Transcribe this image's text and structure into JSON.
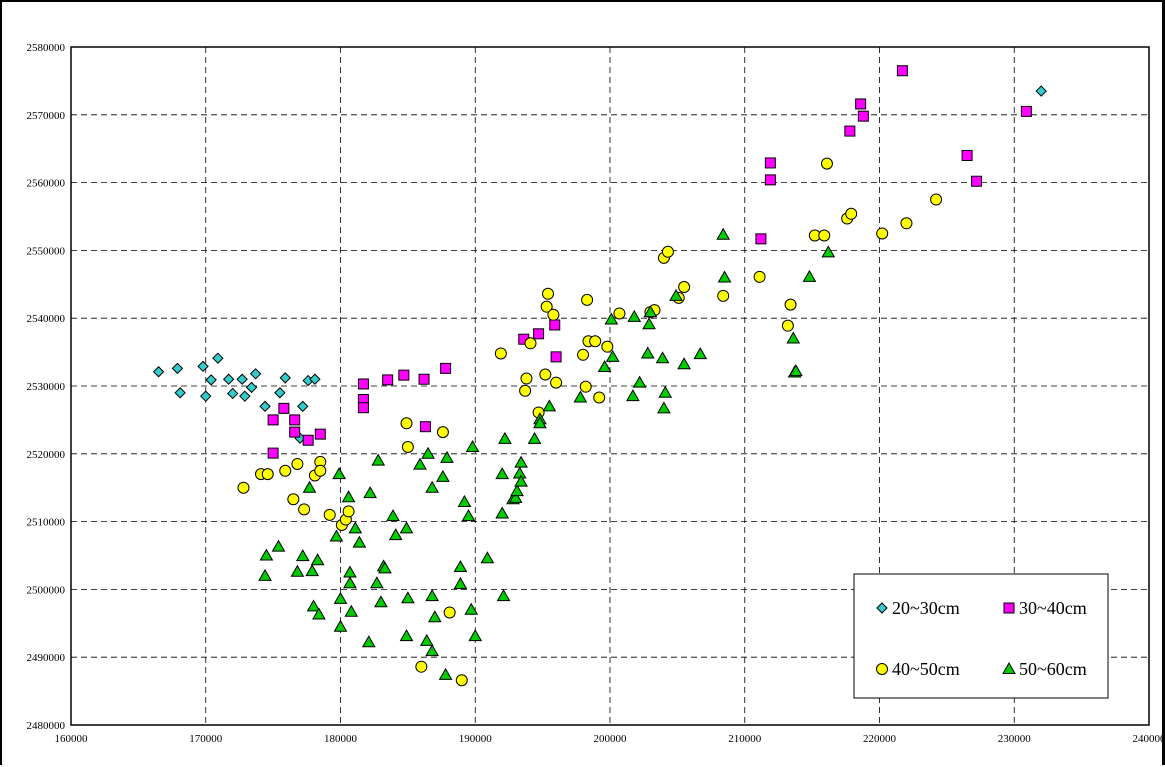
{
  "chart_data": {
    "type": "scatter",
    "title": "",
    "xlabel": "",
    "ylabel": "",
    "xlim": [
      160000,
      240000
    ],
    "ylim": [
      2480000,
      2580000
    ],
    "grid": true,
    "legend_position": "bottom-right",
    "x_ticks": [
      "160000",
      "170000",
      "180000",
      "190000",
      "200000",
      "210000",
      "220000",
      "230000",
      "240000"
    ],
    "y_ticks": [
      "2480000",
      "2490000",
      "2500000",
      "2510000",
      "2520000",
      "2530000",
      "2540000",
      "2550000",
      "2560000",
      "2570000",
      "2580000"
    ],
    "series": [
      {
        "name": "20~30cm",
        "marker": "diamond",
        "color": "#33CCCC",
        "points": [
          [
            166500,
            2532100
          ],
          [
            167900,
            2532600
          ],
          [
            168100,
            2529000
          ],
          [
            169800,
            2532900
          ],
          [
            170000,
            2528500
          ],
          [
            170400,
            2530900
          ],
          [
            170900,
            2534100
          ],
          [
            171700,
            2531000
          ],
          [
            172000,
            2528900
          ],
          [
            172700,
            2531000
          ],
          [
            172900,
            2528500
          ],
          [
            173400,
            2529800
          ],
          [
            173700,
            2531800
          ],
          [
            174400,
            2527000
          ],
          [
            175500,
            2529000
          ],
          [
            175900,
            2531200
          ],
          [
            177200,
            2527000
          ],
          [
            177600,
            2530800
          ],
          [
            178100,
            2531000
          ],
          [
            177000,
            2522300
          ],
          [
            232000,
            2573500
          ]
        ]
      },
      {
        "name": "30~40cm",
        "marker": "square",
        "color": "#FF00FF",
        "points": [
          [
            175000,
            2525000
          ],
          [
            175000,
            2520100
          ],
          [
            175800,
            2526700
          ],
          [
            176600,
            2525000
          ],
          [
            176600,
            2523200
          ],
          [
            177600,
            2522000
          ],
          [
            178500,
            2522900
          ],
          [
            181700,
            2530300
          ],
          [
            181700,
            2528000
          ],
          [
            181700,
            2526800
          ],
          [
            183500,
            2530900
          ],
          [
            184700,
            2531600
          ],
          [
            186200,
            2531000
          ],
          [
            186300,
            2524000
          ],
          [
            187800,
            2532600
          ],
          [
            193600,
            2536900
          ],
          [
            194700,
            2537700
          ],
          [
            195900,
            2539000
          ],
          [
            196000,
            2534300
          ],
          [
            211200,
            2551700
          ],
          [
            211900,
            2562900
          ],
          [
            211900,
            2560400
          ],
          [
            217800,
            2567600
          ],
          [
            218600,
            2571600
          ],
          [
            218800,
            2569800
          ],
          [
            221700,
            2576500
          ],
          [
            226500,
            2564000
          ],
          [
            227200,
            2560200
          ],
          [
            230900,
            2570500
          ]
        ]
      },
      {
        "name": "40~50cm",
        "marker": "circle",
        "color": "#FFFF00",
        "points": [
          [
            172800,
            2515000
          ],
          [
            174100,
            2517000
          ],
          [
            174600,
            2517000
          ],
          [
            175900,
            2517500
          ],
          [
            176500,
            2513300
          ],
          [
            176800,
            2518500
          ],
          [
            177300,
            2511800
          ],
          [
            178100,
            2516800
          ],
          [
            178500,
            2518800
          ],
          [
            178500,
            2517500
          ],
          [
            179200,
            2511000
          ],
          [
            180100,
            2509500
          ],
          [
            180400,
            2510300
          ],
          [
            180600,
            2511500
          ],
          [
            184900,
            2524500
          ],
          [
            185000,
            2521000
          ],
          [
            187600,
            2523200
          ],
          [
            186000,
            2488600
          ],
          [
            188100,
            2496600
          ],
          [
            189000,
            2486600
          ],
          [
            191900,
            2534800
          ],
          [
            193700,
            2529300
          ],
          [
            193800,
            2531100
          ],
          [
            194100,
            2536300
          ],
          [
            194700,
            2526100
          ],
          [
            195200,
            2531700
          ],
          [
            195300,
            2541700
          ],
          [
            195400,
            2543600
          ],
          [
            195800,
            2540500
          ],
          [
            196000,
            2530500
          ],
          [
            198000,
            2534600
          ],
          [
            198200,
            2529900
          ],
          [
            198300,
            2542700
          ],
          [
            198400,
            2536600
          ],
          [
            198900,
            2536600
          ],
          [
            199200,
            2528300
          ],
          [
            199800,
            2535800
          ],
          [
            200700,
            2540700
          ],
          [
            203000,
            2540900
          ],
          [
            203300,
            2541200
          ],
          [
            204000,
            2548900
          ],
          [
            204300,
            2549800
          ],
          [
            205100,
            2543000
          ],
          [
            205500,
            2544600
          ],
          [
            208400,
            2543300
          ],
          [
            211100,
            2546100
          ],
          [
            213200,
            2538900
          ],
          [
            213400,
            2542000
          ],
          [
            216100,
            2562800
          ],
          [
            215200,
            2552200
          ],
          [
            215900,
            2552200
          ],
          [
            217600,
            2554700
          ],
          [
            217900,
            2555400
          ],
          [
            220200,
            2552500
          ],
          [
            222000,
            2554000
          ],
          [
            224200,
            2557500
          ]
        ]
      },
      {
        "name": "50~60cm",
        "marker": "triangle",
        "color": "#00CC00",
        "points": [
          [
            174400,
            2502000
          ],
          [
            174500,
            2505000
          ],
          [
            175400,
            2506300
          ],
          [
            176800,
            2502600
          ],
          [
            177200,
            2504900
          ],
          [
            177700,
            2515000
          ],
          [
            177900,
            2502700
          ],
          [
            178000,
            2497500
          ],
          [
            178300,
            2504300
          ],
          [
            178400,
            2496300
          ],
          [
            179700,
            2507800
          ],
          [
            179900,
            2517000
          ],
          [
            180000,
            2498600
          ],
          [
            180000,
            2494500
          ],
          [
            180600,
            2513600
          ],
          [
            180700,
            2502500
          ],
          [
            180700,
            2500900
          ],
          [
            180800,
            2496700
          ],
          [
            181100,
            2509000
          ],
          [
            181400,
            2506900
          ],
          [
            182200,
            2514200
          ],
          [
            182100,
            2492200
          ],
          [
            182700,
            2500900
          ],
          [
            182800,
            2519000
          ],
          [
            183000,
            2498100
          ],
          [
            183200,
            2503400
          ],
          [
            183300,
            2503100
          ],
          [
            183900,
            2510800
          ],
          [
            184100,
            2508000
          ],
          [
            184900,
            2509000
          ],
          [
            185000,
            2498700
          ],
          [
            184900,
            2493100
          ],
          [
            185900,
            2518400
          ],
          [
            186400,
            2492400
          ],
          [
            186500,
            2520000
          ],
          [
            186800,
            2499000
          ],
          [
            186800,
            2515000
          ],
          [
            186800,
            2490900
          ],
          [
            187000,
            2495900
          ],
          [
            187600,
            2516600
          ],
          [
            187900,
            2519400
          ],
          [
            187800,
            2487400
          ],
          [
            188900,
            2503300
          ],
          [
            188900,
            2500800
          ],
          [
            189200,
            2512900
          ],
          [
            189500,
            2510800
          ],
          [
            189700,
            2497000
          ],
          [
            189800,
            2521000
          ],
          [
            190000,
            2493100
          ],
          [
            190900,
            2504600
          ],
          [
            192000,
            2517000
          ],
          [
            192000,
            2511200
          ],
          [
            192100,
            2499000
          ],
          [
            192200,
            2522200
          ],
          [
            192800,
            2513300
          ],
          [
            193000,
            2513500
          ],
          [
            193100,
            2514500
          ],
          [
            193300,
            2517100
          ],
          [
            193400,
            2518700
          ],
          [
            193400,
            2515900
          ],
          [
            194400,
            2522200
          ],
          [
            194800,
            2525100
          ],
          [
            194800,
            2524500
          ],
          [
            195500,
            2527000
          ],
          [
            197800,
            2528300
          ],
          [
            199600,
            2532800
          ],
          [
            200100,
            2539800
          ],
          [
            200200,
            2534300
          ],
          [
            201700,
            2528500
          ],
          [
            201800,
            2540200
          ],
          [
            202200,
            2530500
          ],
          [
            202800,
            2534800
          ],
          [
            202900,
            2539100
          ],
          [
            203000,
            2540900
          ],
          [
            203900,
            2534100
          ],
          [
            204000,
            2526700
          ],
          [
            204100,
            2529000
          ],
          [
            204900,
            2543300
          ],
          [
            205500,
            2533200
          ],
          [
            206700,
            2534700
          ],
          [
            208400,
            2552300
          ],
          [
            208500,
            2546000
          ],
          [
            213600,
            2537000
          ],
          [
            213700,
            2532000
          ],
          [
            213800,
            2532200
          ],
          [
            214800,
            2546100
          ],
          [
            216200,
            2549700
          ]
        ]
      }
    ]
  }
}
